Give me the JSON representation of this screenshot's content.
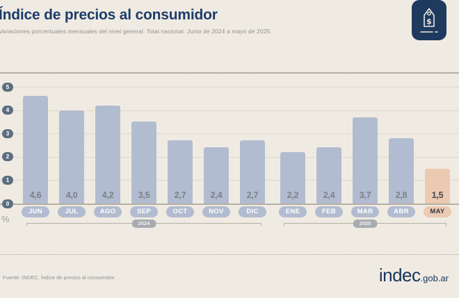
{
  "header": {
    "title": "Índice de precios al consumidor",
    "subtitle": "Variaciones porcentuales mensuales del nivel general. Total nacional. Junio de 2024 a mayo de 2025."
  },
  "chart_data": {
    "type": "bar",
    "categories": [
      "JUN",
      "JUL",
      "AGO",
      "SEP",
      "OCT",
      "NOV",
      "DIC",
      "ENE",
      "FEB",
      "MAR",
      "ABR",
      "MAY"
    ],
    "values": [
      4.6,
      4.0,
      4.2,
      3.5,
      2.7,
      2.4,
      2.7,
      2.2,
      2.4,
      3.7,
      2.8,
      1.5
    ],
    "value_labels": [
      "4,6",
      "4,0",
      "4,2",
      "3,5",
      "2,7",
      "2,4",
      "2,7",
      "2,2",
      "2,4",
      "3,7",
      "2,8",
      "1,5"
    ],
    "highlight_index": 11,
    "title": "Índice de precios al consumidor",
    "xlabel": "",
    "ylabel": "%",
    "ylim": [
      0,
      5
    ],
    "yticks": [
      0,
      1,
      2,
      3,
      4,
      5
    ],
    "grid": true,
    "year_groups": [
      {
        "label": "2024",
        "from": 0,
        "to": 6
      },
      {
        "label": "2025",
        "from": 7,
        "to": 11
      }
    ],
    "colors": {
      "bar": "#b2bcd0",
      "highlight_bar": "#ecc9b1",
      "y_tick_pill": "#5d6e80",
      "year_pill": "#a7acb2",
      "title": "#1d3d6b",
      "background": "#f0ebe2"
    }
  },
  "icons": {
    "badge": "dollar-price-tag-icon"
  },
  "footer": {
    "source": "Fuente: INDEC, Índice de precios al consumidor.",
    "logo_text": "indec",
    "logo_suffix": ".gob.ar"
  }
}
